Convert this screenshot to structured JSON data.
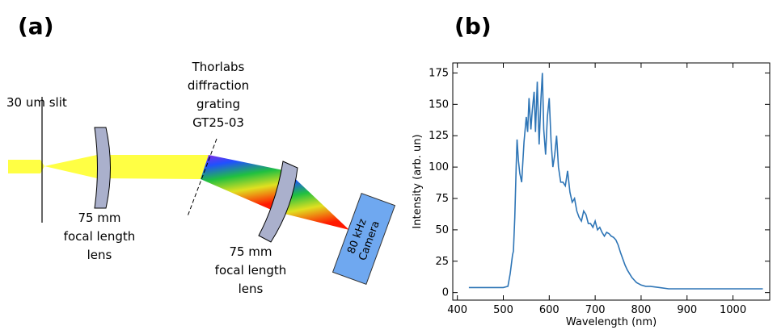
{
  "diagram": {
    "label": "(a)",
    "slit": "30 um slit",
    "grating": [
      "Thorlabs",
      "diffraction",
      "grating",
      "GT25-03"
    ],
    "lens1": [
      "75 mm",
      "focal length",
      "lens"
    ],
    "lens2": [
      "75 mm",
      "focal length",
      "lens"
    ],
    "camera": [
      "80 kHz",
      "Camera"
    ]
  },
  "chart_data": {
    "type": "line",
    "panel_label": "(b)",
    "xlabel": "Wavelength (nm)",
    "ylabel": "Intensity (arb. un)",
    "color": "#2e75b6",
    "xlim": [
      390,
      1080
    ],
    "ylim": [
      -6,
      183
    ],
    "xticks": [
      400,
      500,
      600,
      700,
      800,
      900,
      1000
    ],
    "yticks": [
      0,
      25,
      50,
      75,
      100,
      125,
      150,
      175
    ],
    "x": [
      425,
      450,
      475,
      500,
      510,
      515,
      520,
      522,
      525,
      528,
      530,
      533,
      536,
      540,
      545,
      550,
      553,
      556,
      560,
      563,
      567,
      570,
      574,
      578,
      582,
      585,
      588,
      592,
      596,
      600,
      604,
      608,
      612,
      616,
      620,
      625,
      630,
      635,
      640,
      645,
      650,
      655,
      660,
      665,
      670,
      675,
      680,
      685,
      690,
      695,
      700,
      705,
      710,
      715,
      720,
      725,
      730,
      735,
      740,
      745,
      750,
      755,
      760,
      765,
      770,
      775,
      780,
      785,
      790,
      800,
      810,
      820,
      840,
      860,
      900,
      950,
      1000,
      1040,
      1065
    ],
    "values": [
      4,
      4,
      4,
      4,
      5,
      15,
      30,
      33,
      60,
      100,
      122,
      105,
      95,
      88,
      120,
      140,
      128,
      155,
      130,
      145,
      160,
      128,
      168,
      118,
      155,
      175,
      130,
      110,
      140,
      155,
      120,
      100,
      110,
      125,
      100,
      88,
      88,
      85,
      97,
      80,
      72,
      75,
      65,
      60,
      57,
      65,
      62,
      55,
      55,
      52,
      57,
      50,
      52,
      48,
      45,
      48,
      47,
      45,
      44,
      42,
      38,
      32,
      27,
      22,
      18,
      15,
      12,
      10,
      8,
      6,
      5,
      5,
      4,
      3,
      3,
      3,
      3,
      3,
      3
    ]
  }
}
